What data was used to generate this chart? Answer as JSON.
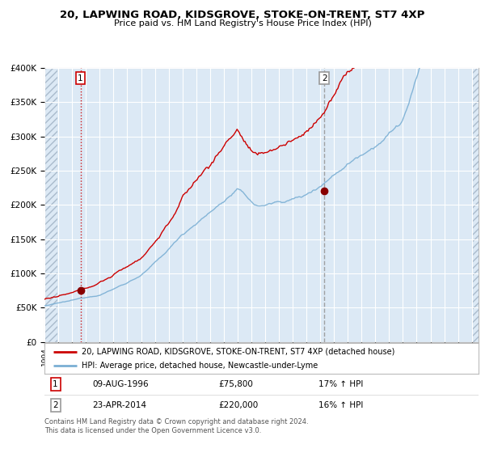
{
  "title1": "20, LAPWING ROAD, KIDSGROVE, STOKE-ON-TRENT, ST7 4XP",
  "title2": "Price paid vs. HM Land Registry's House Price Index (HPI)",
  "legend_line1": "20, LAPWING ROAD, KIDSGROVE, STOKE-ON-TRENT, ST7 4XP (detached house)",
  "legend_line2": "HPI: Average price, detached house, Newcastle-under-Lyme",
  "sale1_date": "09-AUG-1996",
  "sale1_price": 75800,
  "sale1_hpi": "17% ↑ HPI",
  "sale2_date": "23-APR-2014",
  "sale2_price": 220000,
  "sale2_hpi": "16% ↑ HPI",
  "footnote": "Contains HM Land Registry data © Crown copyright and database right 2024.\nThis data is licensed under the Open Government Licence v3.0.",
  "bg_color": "#dce9f5",
  "red_line_color": "#cc0000",
  "blue_line_color": "#7aafd4",
  "dot_color": "#880000",
  "vline1_color": "#cc0000",
  "vline2_color": "#999999",
  "ylim": [
    0,
    400000
  ],
  "yticks": [
    0,
    50000,
    100000,
    150000,
    200000,
    250000,
    300000,
    350000,
    400000
  ],
  "sale1_x": 1996.6,
  "sale2_x": 2014.3,
  "xmin": 1994.0,
  "xmax": 2025.5
}
